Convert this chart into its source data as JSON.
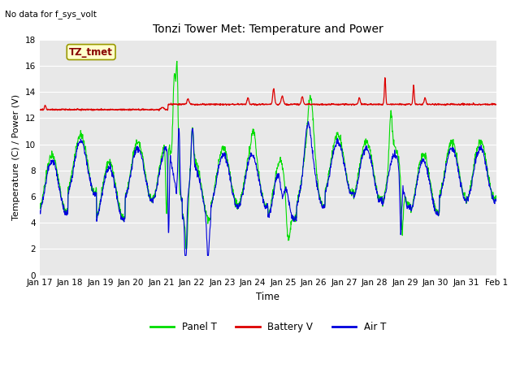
{
  "title": "Tonzi Tower Met: Temperature and Power",
  "xlabel": "Time",
  "ylabel": "Temperature (C) / Power (V)",
  "top_left_text": "No data for f_sys_volt",
  "annotation_text": "TZ_tmet",
  "ylim": [
    0,
    18
  ],
  "yticks": [
    0,
    2,
    4,
    6,
    8,
    10,
    12,
    14,
    16,
    18
  ],
  "xtick_labels": [
    "Jan 17",
    "Jan 18",
    "Jan 19",
    "Jan 20",
    "Jan 21",
    "Jan 22",
    "Jan 23",
    "Jan 24",
    "Jan 25",
    "Jan 26",
    "Jan 27",
    "Jan 28",
    "Jan 29",
    "Jan 30",
    "Jan 31",
    "Feb 1"
  ],
  "panel_color": "#00dd00",
  "battery_color": "#dd0000",
  "air_color": "#0000dd",
  "legend_labels": [
    "Panel T",
    "Battery V",
    "Air T"
  ],
  "fig_bg_color": "#ffffff",
  "plot_bg_color": "#e8e8e8",
  "annotation_bg": "#ffffcc",
  "annotation_border": "#999900",
  "grid_color": "#ffffff",
  "figsize": [
    6.4,
    4.8
  ],
  "dpi": 100
}
